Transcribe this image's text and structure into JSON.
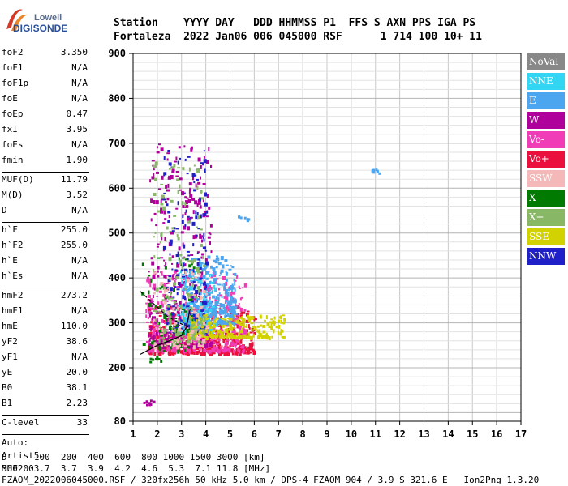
{
  "logo": {
    "brand": "Lowell",
    "name": "DIGISONDE"
  },
  "header": {
    "line1": "Station    YYYY DAY   DDD HHMMSS P1  FFS S AXN PPS IGA PS",
    "line2": "Fortaleza  2022 Jan06 006 045000 RSF      1 714 100 10+ 11"
  },
  "params": {
    "g1": [
      [
        "foF2",
        "3.350"
      ],
      [
        "foF1",
        "N/A"
      ],
      [
        "foF1p",
        "N/A"
      ],
      [
        "foE",
        "N/A"
      ],
      [
        "foEp",
        "0.47"
      ],
      [
        "fxI",
        "3.95"
      ],
      [
        "foEs",
        "N/A"
      ],
      [
        "fmin",
        "1.90"
      ]
    ],
    "g2": [
      [
        "MUF(D)",
        "11.79"
      ],
      [
        "M(D)",
        "3.52"
      ],
      [
        "D",
        "N/A"
      ]
    ],
    "g3": [
      [
        "h`F",
        "255.0"
      ],
      [
        "h`F2",
        "255.0"
      ],
      [
        "h`E",
        "N/A"
      ],
      [
        "h`Es",
        "N/A"
      ]
    ],
    "g4": [
      [
        "hmF2",
        "273.2"
      ],
      [
        "hmF1",
        "N/A"
      ],
      [
        "hmE",
        "110.0"
      ],
      [
        "yF2",
        "38.6"
      ],
      [
        "yF1",
        "N/A"
      ],
      [
        "yE",
        "20.0"
      ],
      [
        "B0",
        "38.1"
      ],
      [
        "B1",
        "2.23"
      ]
    ],
    "g5": [
      [
        "C-level",
        "33"
      ]
    ],
    "auto": [
      "Auto:",
      "Artist5",
      "500200"
    ]
  },
  "legend": [
    {
      "label": "NoVal",
      "color": "#888888"
    },
    {
      "label": "NNE",
      "color": "#33d6f2"
    },
    {
      "label": "E",
      "color": "#4ca6ef"
    },
    {
      "label": "W",
      "color": "#b0009c"
    },
    {
      "label": "Vo-",
      "color": "#f03cb6"
    },
    {
      "label": "Vo+",
      "color": "#ea0f3c"
    },
    {
      "label": "SSW",
      "color": "#f4b8b8"
    },
    {
      "label": "X-",
      "color": "#007a00"
    },
    {
      "label": "X+",
      "color": "#88b866"
    },
    {
      "label": "SSE",
      "color": "#d2d200"
    },
    {
      "label": "NNW",
      "color": "#2020c8"
    }
  ],
  "footer": {
    "line1": "D     100  200  400  600  800 1000 1500 3000 [km]",
    "line2": "MUF   3.7  3.7  3.9  4.2  4.6  5.3  7.1 11.8 [MHz]",
    "line3": "FZAOM_2022006045000.RSF / 320fx256h 50 kHz 5.0 km / DPS-4 FZAOM 904 / 3.9 S 321.6 E   Ion2Png 1.3.20"
  },
  "chart_data": {
    "type": "scatter",
    "title": "",
    "xlabel": "",
    "ylabel": "",
    "xlim": [
      1,
      17
    ],
    "ylim": [
      80,
      900
    ],
    "xticks": [
      1,
      2,
      3,
      4,
      5,
      6,
      7,
      8,
      9,
      10,
      11,
      12,
      13,
      14,
      15,
      16,
      17
    ],
    "yticks": [
      80,
      200,
      300,
      400,
      500,
      600,
      700,
      800,
      900
    ],
    "grid": true,
    "series": [
      {
        "color": "#ea0f3c",
        "region": [
          1.6,
          6.0,
          235,
          340
        ],
        "count": 520
      },
      {
        "color": "#f03cb6",
        "region": [
          1.5,
          5.6,
          240,
          420
        ],
        "count": 420
      },
      {
        "color": "#b0009c",
        "region": [
          1.6,
          4.2,
          250,
          700
        ],
        "count": 360
      },
      {
        "color": "#4ca6ef",
        "region": [
          3.0,
          5.2,
          300,
          450
        ],
        "count": 360
      },
      {
        "color": "#33d6f2",
        "region": [
          2.8,
          4.4,
          280,
          420
        ],
        "count": 120
      },
      {
        "color": "#2020c8",
        "region": [
          2.2,
          4.0,
          280,
          700
        ],
        "count": 170
      },
      {
        "color": "#d2d200",
        "region": [
          3.2,
          7.2,
          270,
          320
        ],
        "count": 240
      },
      {
        "color": "#007a00",
        "region": [
          1.3,
          3.5,
          240,
          450
        ],
        "count": 60
      },
      {
        "color": "#88b866",
        "region": [
          1.8,
          3.9,
          260,
          660
        ],
        "count": 160
      },
      {
        "color": "#f4b8b8",
        "region": [
          1.8,
          4.0,
          250,
          420
        ],
        "count": 90
      }
    ],
    "isolated_clusters": [
      {
        "color": "#4ca6ef",
        "x": 11.05,
        "y": 640
      },
      {
        "color": "#4ca6ef",
        "x": 5.5,
        "y": 535
      },
      {
        "color": "#007a00",
        "x": 1.9,
        "y": 220
      },
      {
        "color": "#b0009c",
        "x": 1.6,
        "y": 125
      }
    ],
    "traces": [
      {
        "name": "o-trace",
        "x": [
          1.3,
          2.0,
          2.6,
          3.0,
          3.2,
          3.35
        ],
        "y": [
          230,
          250,
          262,
          272,
          290,
          330
        ]
      },
      {
        "name": "x-trace",
        "x": [
          1.3,
          1.9,
          2.4,
          2.9,
          3.3
        ],
        "y": [
          370,
          340,
          315,
          300,
          290
        ]
      }
    ]
  }
}
